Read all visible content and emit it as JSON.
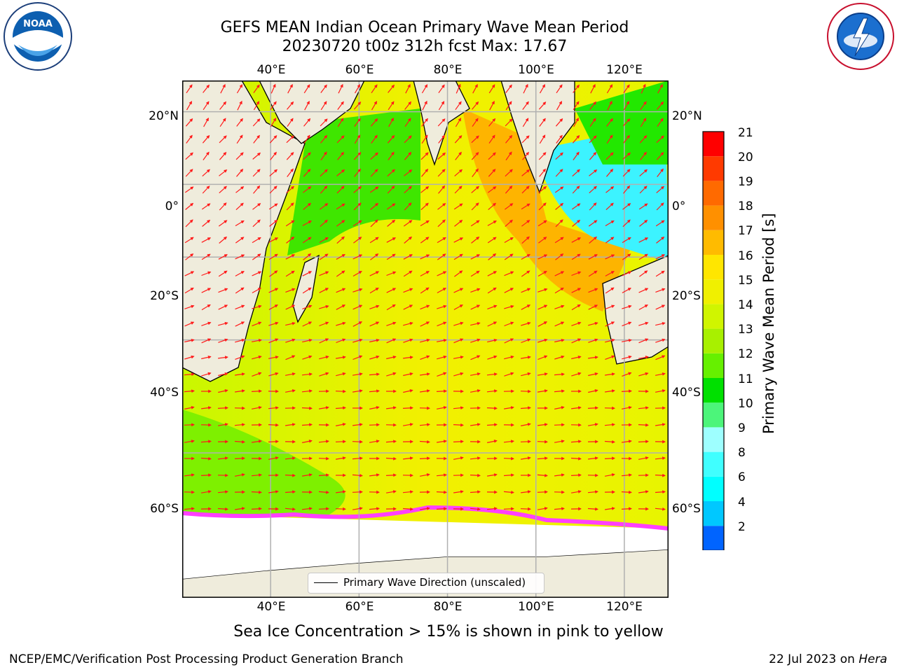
{
  "header": {
    "title_line1": "GEFS MEAN Indian Ocean Primary Wave Mean Period",
    "title_line2": "20230720 t00z 312h fcst   Max: 17.67"
  },
  "logos": {
    "noaa": {
      "text": "NOAA",
      "ring_text": "NATIONAL OCEANIC AND ATMOSPHERIC ADMINISTRATION · U.S. DEPARTMENT OF COMMERCE"
    },
    "nws": {
      "ring_text": "NATIONAL WEATHER SERVICE"
    }
  },
  "map": {
    "lon_labels_top": [
      "40°E",
      "60°E",
      "80°E",
      "100°E",
      "120°E"
    ],
    "lon_labels_bottom": [
      "40°E",
      "60°E",
      "80°E",
      "100°E",
      "120°E"
    ],
    "lat_labels_left": [
      "20°N",
      "0°",
      "20°S",
      "40°S",
      "60°S"
    ],
    "lat_labels_right": [
      "20°N",
      "0°",
      "20°S",
      "40°S",
      "60°S"
    ],
    "extent": {
      "lon": [
        20,
        130
      ],
      "lat": [
        -75,
        28
      ]
    },
    "colors": {
      "land": "#efecdc",
      "grid": "#b0b0b0",
      "arrow": "#ff1a1a",
      "ice_pink": "#ff40ff"
    },
    "legend_label": "Primary Wave Direction (unscaled)"
  },
  "colorbar": {
    "title": "Primary Wave Mean Period [s]",
    "ticks": [
      "2",
      "4",
      "6",
      "8",
      "9",
      "10",
      "11",
      "12",
      "13",
      "14",
      "15",
      "16",
      "17",
      "18",
      "19",
      "20",
      "21"
    ],
    "colors": [
      "#0064ff",
      "#00c8ff",
      "#00ffff",
      "#40ffff",
      "#9effff",
      "#4cf57a",
      "#00e000",
      "#66f000",
      "#a8f000",
      "#d0f500",
      "#f0f000",
      "#ffe600",
      "#ffbb00",
      "#ff9000",
      "#ff6a00",
      "#ff3a00",
      "#ff0000"
    ],
    "extend_color": "#0000ff"
  },
  "caption": "Sea Ice Concentration > 15% is shown in pink to yellow",
  "footer": {
    "left": "NCEP/EMC/Verification Post Processing Product Generation Branch",
    "date": "22 Jul 2023 on ",
    "machine": "Hera"
  }
}
